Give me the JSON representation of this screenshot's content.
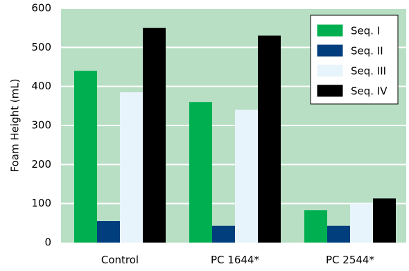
{
  "chart_data": {
    "type": "bar",
    "title": "",
    "xlabel": "",
    "ylabel": "Foam Height (mL)",
    "ylim": [
      0,
      600
    ],
    "yticks": [
      0,
      100,
      200,
      300,
      400,
      500,
      600
    ],
    "grid": true,
    "legend_position": "top-right",
    "plot_background": "#b8dfc4",
    "gridline_color": "#ffffff",
    "categories": [
      "Control",
      "PC 1644*",
      "PC 2544*"
    ],
    "series": [
      {
        "name": "Seq. I",
        "color": "#00b050",
        "values": [
          440,
          360,
          83
        ]
      },
      {
        "name": "Seq. II",
        "color": "#003e7e",
        "values": [
          55,
          43,
          43
        ]
      },
      {
        "name": "Seq. III",
        "color": "#e8f4fc",
        "values": [
          385,
          340,
          100
        ]
      },
      {
        "name": "Seq. IV",
        "color": "#000000",
        "values": [
          550,
          530,
          113
        ]
      }
    ]
  }
}
